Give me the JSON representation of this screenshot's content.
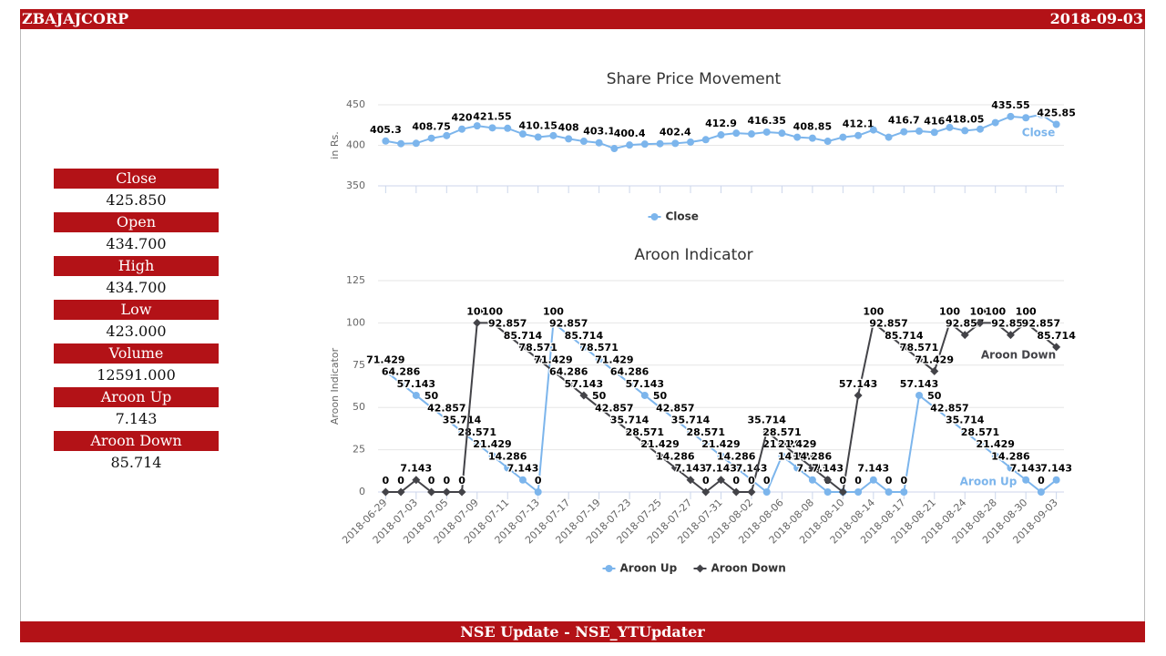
{
  "header": {
    "title": "ZBAJAJCORP",
    "date": "2018-09-03"
  },
  "stats": [
    {
      "label": "Close",
      "value": "425.850"
    },
    {
      "label": "Open",
      "value": "434.700"
    },
    {
      "label": "High",
      "value": "434.700"
    },
    {
      "label": "Low",
      "value": "423.000"
    },
    {
      "label": "Volume",
      "value": "12591.000"
    },
    {
      "label": "Aroon Up",
      "value": "7.143"
    },
    {
      "label": "Aroon Down",
      "value": "85.714"
    }
  ],
  "footer": "NSE Update - NSE_YTUpdater",
  "chart_data": [
    {
      "type": "line",
      "title": "Share Price Movement",
      "y_label": "in Rs.",
      "ylim": [
        350,
        450
      ],
      "yticks": [
        350,
        400,
        450
      ],
      "grid": true,
      "legend": "bottom",
      "series": [
        {
          "name": "Close",
          "color": "#7cb5ec",
          "marker": "circle",
          "values": [
            405.3,
            402,
            402.5,
            408.75,
            412,
            420,
            424,
            421.55,
            421,
            414,
            410.15,
            412,
            408,
            405,
            403.1,
            396,
            400.4,
            401.5,
            402,
            402.4,
            404,
            407,
            412.9,
            415,
            414,
            416.35,
            415,
            410,
            408.85,
            405,
            410,
            412.1,
            419,
            410,
            416.7,
            417.5,
            416,
            422,
            418.05,
            420,
            428,
            435.55,
            434,
            438,
            425.85
          ],
          "value_labels": [
            "405.3",
            null,
            null,
            "408.75",
            null,
            "420",
            null,
            "421.55",
            null,
            null,
            "410.15",
            null,
            "408",
            null,
            "403.1",
            null,
            "400.4",
            null,
            null,
            "402.4",
            null,
            null,
            "412.9",
            null,
            null,
            "416.35",
            null,
            null,
            "408.85",
            null,
            null,
            "412.1",
            null,
            null,
            "416.7",
            null,
            "416",
            null,
            "418.05",
            null,
            null,
            "435.55",
            null,
            null,
            "425.85"
          ]
        }
      ]
    },
    {
      "type": "line",
      "title": "Aroon Indicator",
      "y_label": "Aroon Indicator",
      "ylim": [
        0,
        125
      ],
      "yticks": [
        0,
        25,
        50,
        75,
        100,
        125
      ],
      "grid": true,
      "legend": "bottom",
      "categories": [
        "2018-06-29",
        null,
        "2018-07-03",
        null,
        "2018-07-05",
        null,
        "2018-07-09",
        null,
        "2018-07-11",
        null,
        "2018-07-13",
        null,
        "2018-07-17",
        null,
        "2018-07-19",
        null,
        "2018-07-23",
        null,
        "2018-07-25",
        null,
        "2018-07-27",
        null,
        "2018-07-31",
        null,
        "2018-08-02",
        null,
        "2018-08-06",
        null,
        "2018-08-08",
        null,
        "2018-08-10",
        null,
        "2018-08-14",
        null,
        "2018-08-17",
        null,
        "2018-08-21",
        null,
        "2018-08-24",
        null,
        "2018-08-28",
        null,
        "2018-08-30",
        null,
        "2018-09-03"
      ],
      "series": [
        {
          "name": "Aroon Up",
          "color": "#7cb5ec",
          "marker": "circle",
          "values": [
            71.429,
            64.286,
            57.143,
            50,
            42.857,
            35.714,
            28.571,
            21.429,
            14.286,
            7.143,
            0,
            100,
            92.857,
            85.714,
            78.571,
            71.429,
            64.286,
            57.143,
            50,
            42.857,
            35.714,
            28.571,
            21.429,
            14.286,
            7.143,
            0,
            21.429,
            14.286,
            7.143,
            0,
            0,
            0,
            7.143,
            0,
            0,
            57.143,
            50,
            42.857,
            35.714,
            28.571,
            21.429,
            14.286,
            7.143,
            0,
            7.143
          ]
        },
        {
          "name": "Aroon Down",
          "color": "#434348",
          "marker": "diamond",
          "values": [
            0,
            0,
            7.143,
            0,
            0,
            0,
            100,
            100,
            92.857,
            85.714,
            78.571,
            71.429,
            64.286,
            57.143,
            50,
            42.857,
            35.714,
            28.571,
            21.429,
            14.286,
            7.143,
            0,
            7.143,
            0,
            0,
            35.714,
            28.571,
            21.429,
            14.286,
            7.143,
            0,
            57.143,
            100,
            92.857,
            85.714,
            78.571,
            71.429,
            100,
            92.857,
            100,
            100,
            92.857,
            100,
            92.857,
            85.714
          ]
        }
      ]
    }
  ]
}
